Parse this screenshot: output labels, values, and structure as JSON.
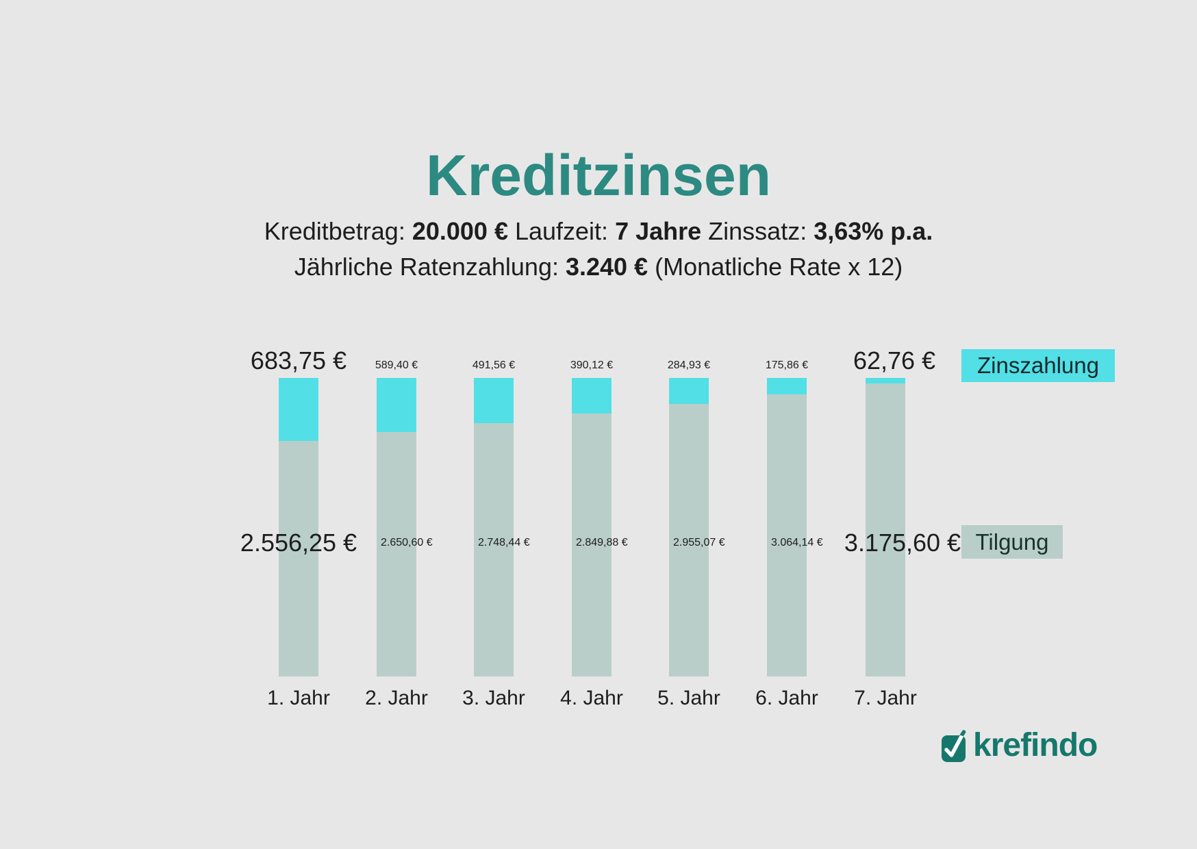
{
  "title": "Kreditzinsen",
  "subtitle": {
    "line1": [
      {
        "text": "Kreditbetrag: ",
        "bold": false
      },
      {
        "text": "20.000 €",
        "bold": true
      },
      {
        "text": " Laufzeit: ",
        "bold": false
      },
      {
        "text": "7 Jahre",
        "bold": true
      },
      {
        "text": " Zinssatz: ",
        "bold": false
      },
      {
        "text": "3,63% p.a.",
        "bold": true
      }
    ],
    "line2": [
      {
        "text": "Jährliche Ratenzahlung: ",
        "bold": false
      },
      {
        "text": "3.240 €",
        "bold": true
      },
      {
        "text": " (Monatliche Rate x 12)",
        "bold": false
      }
    ]
  },
  "legend": [
    {
      "label": "Zinszahlung",
      "color": "#52dfe6"
    },
    {
      "label": "Tilgung",
      "color": "#b9cec9"
    }
  ],
  "logo_text": "krefindo",
  "colors": {
    "background": "#e8e7e7",
    "interest_cyan": "#52dfe6",
    "principal_gray_green": "#b9cec9",
    "title_teal": "#2c8a82",
    "logo_teal": "#16786c",
    "text": "#1d1d1d"
  },
  "chart_data": {
    "type": "bar",
    "stacked": true,
    "title": "Kreditzinsen",
    "categories": [
      "1. Jahr",
      "2. Jahr",
      "3. Jahr",
      "4. Jahr",
      "5. Jahr",
      "6. Jahr",
      "7. Jahr"
    ],
    "series": [
      {
        "name": "Zinszahlung",
        "values": [
          683.75,
          589.4,
          491.56,
          390.12,
          284.93,
          175.86,
          62.76
        ],
        "labels": [
          "683,75 €",
          "589,40 €",
          "491,56 €",
          "390,12 €",
          "284,93 €",
          "175,86 €",
          "62,76 €"
        ]
      },
      {
        "name": "Tilgung",
        "values": [
          2556.25,
          2650.6,
          2748.44,
          2849.88,
          2955.07,
          3064.14,
          3175.6
        ],
        "labels": [
          "2.556,25 €",
          "2.650,60 €",
          "2.748,44 €",
          "2.849,88 €",
          "2.955,07 €",
          "3.064,14 €",
          "3.175,60 €"
        ]
      }
    ],
    "annual_total": 3240,
    "emphasized_years": [
      1,
      7
    ],
    "grid": false,
    "axes_hidden": true,
    "legend_position": "right",
    "credit_amount": "20.000 €",
    "term": "7 Jahre",
    "interest_rate": "3,63% p.a.",
    "annual_payment": "3.240 €"
  }
}
